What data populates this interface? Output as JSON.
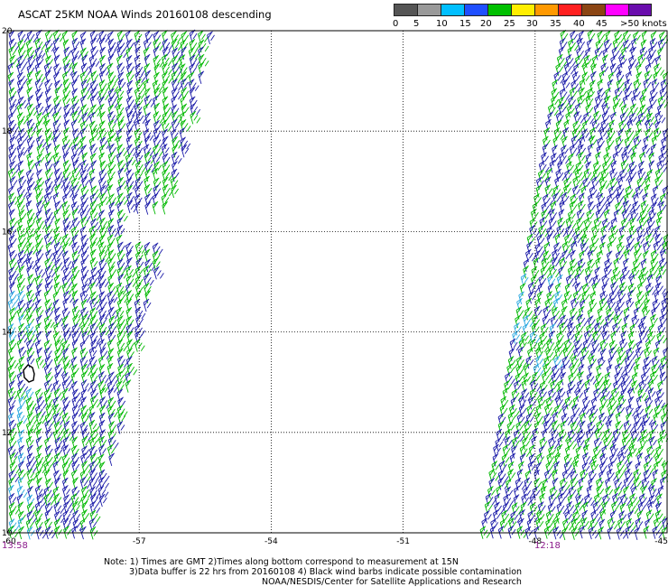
{
  "header": {
    "title": "ASCAT 25KM NOAA Winds 20160108 descending"
  },
  "colorbar": {
    "labels": [
      "0",
      "5",
      "10",
      "15",
      "20",
      "25",
      "30",
      "35",
      "40",
      "45",
      ">50 knots"
    ],
    "colors": [
      "#555555",
      "#999999",
      "#00bfff",
      "#1f4fff",
      "#00c000",
      "#ffee00",
      "#ff9900",
      "#ff2020",
      "#8b4513",
      "#ff00ff",
      "#6a0dad"
    ]
  },
  "map": {
    "lon_labels": [
      "-60",
      "-57",
      "-54",
      "-51",
      "-48",
      "-45"
    ],
    "lat_labels": [
      "20",
      "18",
      "16",
      "14",
      "12",
      "10"
    ],
    "lon_range": [
      -60,
      -45
    ],
    "lat_range": [
      10,
      20
    ],
    "grid": "dotted",
    "barb_colors": {
      "low": "#1a1aa8",
      "mid": "#00b800",
      "light": "#2aa8e0",
      "contamination": "#000000"
    }
  },
  "times": {
    "left": "13:58",
    "right": "12:18"
  },
  "notes": {
    "line1": "Note:  1) Times are GMT  2)Times along bottom correspond to measurement at 15N",
    "line2": "3)Data buffer is 22 hrs from 20160108  4) Black wind barbs indicate possible contamination",
    "line3": "NOAA/NESDIS/Center for Satellite Applications and Research"
  }
}
